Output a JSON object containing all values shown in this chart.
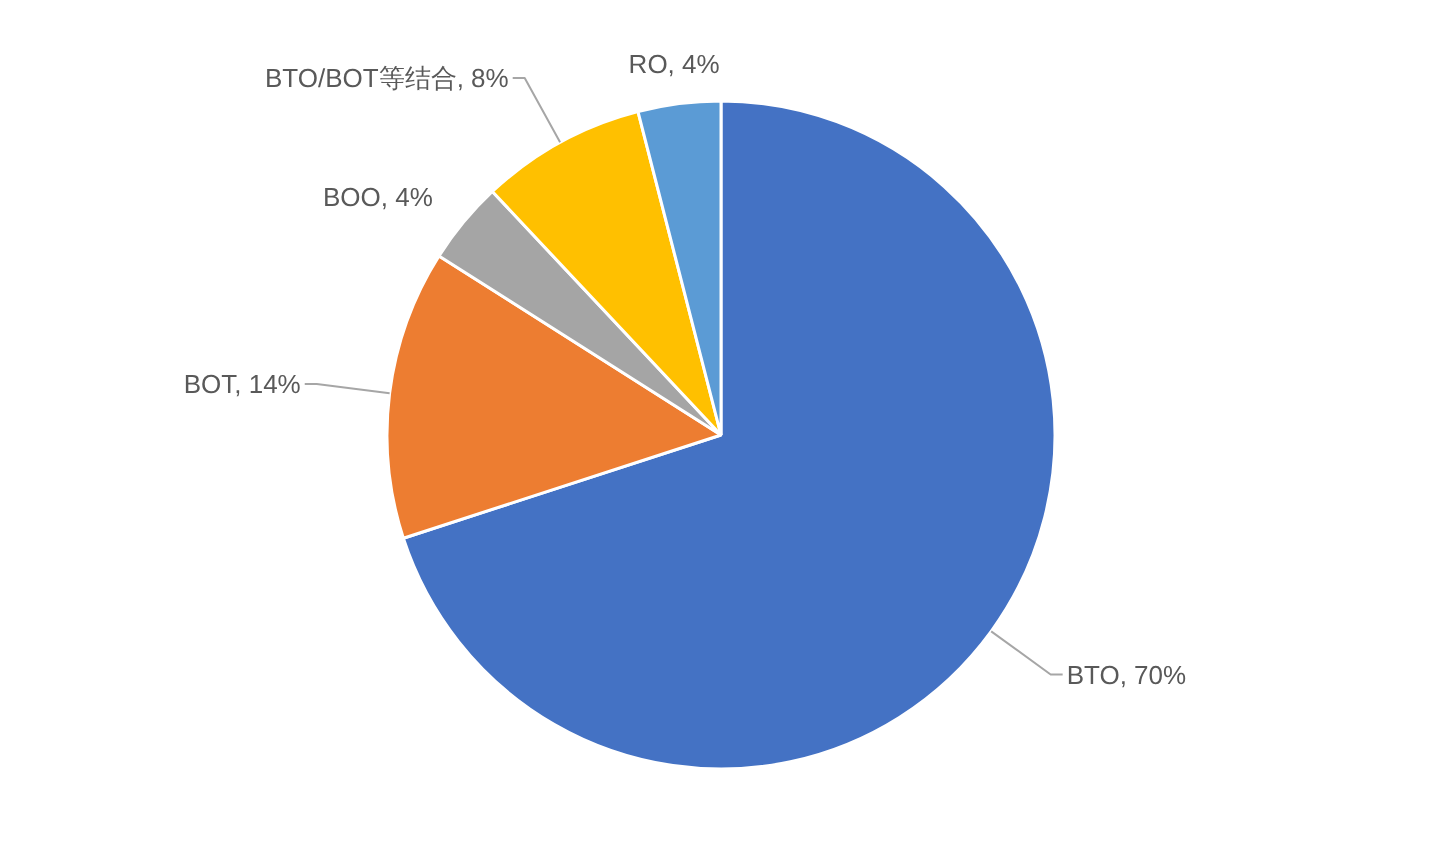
{
  "chart_data": {
    "type": "pie",
    "categories": [
      "BTO",
      "BOT",
      "BOO",
      "BTO/BOT等结合",
      "RO"
    ],
    "values": [
      70,
      14,
      4,
      8,
      4
    ],
    "colors": [
      "#4472c4",
      "#ed7d31",
      "#a5a5a5",
      "#ffc000",
      "#5b9bd5"
    ],
    "value_labels": [
      "70%",
      "14%",
      "4%",
      "8%",
      "4%"
    ]
  }
}
